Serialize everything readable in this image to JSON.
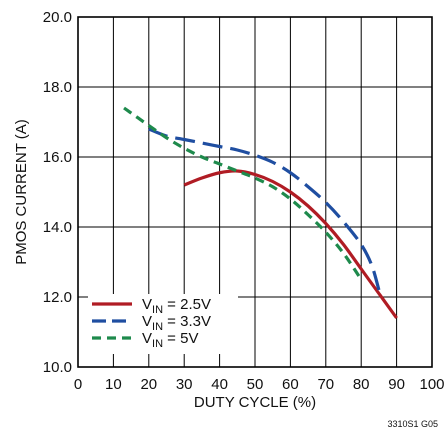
{
  "chart_data": {
    "type": "line",
    "title": "",
    "xlabel": "DUTY CYCLE (%)",
    "ylabel": "PMOS CURRENT (A)",
    "xlim": [
      0,
      100
    ],
    "ylim": [
      10.0,
      20.0
    ],
    "x_ticks": [
      "0",
      "10",
      "20",
      "30",
      "40",
      "50",
      "60",
      "70",
      "80",
      "90",
      "100"
    ],
    "y_ticks": [
      "10.0",
      "12.0",
      "14.0",
      "16.0",
      "18.0",
      "20.0"
    ],
    "grid": true,
    "legend_position": "bottom-left",
    "series": [
      {
        "name_main": "V",
        "name_sub": "IN",
        "name_tail": " = 2.5V",
        "color": "#b01c24",
        "dash": "solid",
        "points": [
          [
            30,
            15.2
          ],
          [
            35,
            15.4
          ],
          [
            40,
            15.55
          ],
          [
            45,
            15.6
          ],
          [
            50,
            15.5
          ],
          [
            55,
            15.3
          ],
          [
            60,
            15.0
          ],
          [
            65,
            14.6
          ],
          [
            70,
            14.1
          ],
          [
            75,
            13.5
          ],
          [
            80,
            12.8
          ],
          [
            85,
            12.1
          ],
          [
            90,
            11.4
          ]
        ]
      },
      {
        "name_main": "V",
        "name_sub": "IN",
        "name_tail": " = 3.3V",
        "color": "#1f4ea1",
        "dash": "long-dash",
        "points": [
          [
            20,
            16.8
          ],
          [
            25,
            16.6
          ],
          [
            30,
            16.5
          ],
          [
            35,
            16.4
          ],
          [
            40,
            16.3
          ],
          [
            45,
            16.2
          ],
          [
            50,
            16.05
          ],
          [
            55,
            15.85
          ],
          [
            60,
            15.55
          ],
          [
            65,
            15.15
          ],
          [
            70,
            14.7
          ],
          [
            75,
            14.15
          ],
          [
            80,
            13.5
          ],
          [
            83,
            12.9
          ],
          [
            85,
            12.2
          ]
        ]
      },
      {
        "name_main": "V",
        "name_sub": "IN",
        "name_tail": " = 5V",
        "color": "#1e8a4c",
        "dash": "short-dash",
        "points": [
          [
            13,
            17.4
          ],
          [
            20,
            16.9
          ],
          [
            25,
            16.55
          ],
          [
            30,
            16.25
          ],
          [
            35,
            16.0
          ],
          [
            40,
            15.8
          ],
          [
            45,
            15.6
          ],
          [
            50,
            15.4
          ],
          [
            55,
            15.15
          ],
          [
            60,
            14.8
          ],
          [
            65,
            14.35
          ],
          [
            70,
            13.85
          ],
          [
            75,
            13.25
          ],
          [
            80,
            12.5
          ]
        ]
      }
    ]
  },
  "figure_code": "3310S1 G05"
}
